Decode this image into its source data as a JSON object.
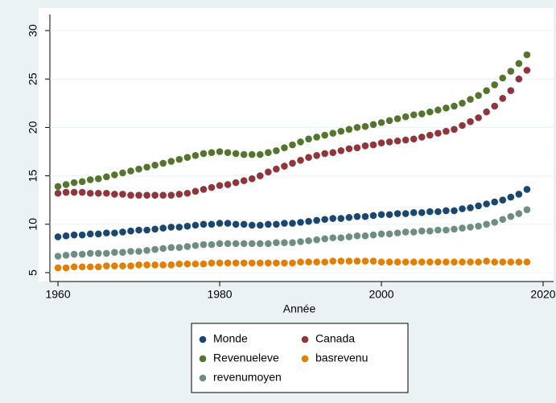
{
  "chart_data": {
    "type": "scatter",
    "x_label": "Année",
    "x": [
      1960,
      1961,
      1962,
      1963,
      1964,
      1965,
      1966,
      1967,
      1968,
      1969,
      1970,
      1971,
      1972,
      1973,
      1974,
      1975,
      1976,
      1977,
      1978,
      1979,
      1980,
      1981,
      1982,
      1983,
      1984,
      1985,
      1986,
      1987,
      1988,
      1989,
      1990,
      1991,
      1992,
      1993,
      1994,
      1995,
      1996,
      1997,
      1998,
      1999,
      2000,
      2001,
      2002,
      2003,
      2004,
      2005,
      2006,
      2007,
      2008,
      2009,
      2010,
      2011,
      2012,
      2013,
      2014,
      2015,
      2016,
      2017,
      2018
    ],
    "xlim": [
      1959,
      2020
    ],
    "xticks": [
      1960,
      1980,
      2000,
      2020
    ],
    "ylim": [
      4.3,
      30.5
    ],
    "yticks": [
      5,
      10,
      15,
      20,
      25,
      30
    ],
    "grid": true,
    "legend_position": "bottom",
    "series": [
      {
        "name": "Monde",
        "color": "#1a476f",
        "values": [
          8.7,
          8.8,
          8.9,
          8.9,
          9.0,
          9.0,
          9.1,
          9.1,
          9.2,
          9.3,
          9.4,
          9.4,
          9.5,
          9.6,
          9.7,
          9.7,
          9.8,
          9.9,
          10.0,
          10.0,
          10.1,
          10.1,
          10.0,
          10.0,
          9.9,
          9.9,
          10.0,
          10.0,
          10.1,
          10.1,
          10.2,
          10.3,
          10.4,
          10.5,
          10.6,
          10.6,
          10.7,
          10.8,
          10.8,
          10.9,
          11.0,
          11.0,
          11.1,
          11.1,
          11.2,
          11.2,
          11.3,
          11.3,
          11.4,
          11.4,
          11.6,
          11.7,
          11.9,
          12.1,
          12.3,
          12.5,
          12.8,
          13.1,
          13.6
        ]
      },
      {
        "name": "Canada",
        "color": "#90353b",
        "values": [
          13.2,
          13.3,
          13.3,
          13.3,
          13.2,
          13.2,
          13.2,
          13.1,
          13.1,
          13.0,
          13.0,
          13.0,
          13.0,
          13.0,
          13.0,
          13.1,
          13.2,
          13.4,
          13.6,
          13.8,
          14.0,
          14.1,
          14.3,
          14.5,
          14.7,
          15.0,
          15.4,
          15.7,
          16.0,
          16.3,
          16.6,
          16.9,
          17.1,
          17.3,
          17.4,
          17.6,
          17.8,
          17.9,
          18.1,
          18.2,
          18.4,
          18.5,
          18.6,
          18.7,
          18.8,
          19.0,
          19.2,
          19.4,
          19.6,
          19.8,
          20.2,
          20.6,
          21.0,
          21.6,
          22.2,
          23.0,
          23.8,
          25.0,
          25.9
        ]
      },
      {
        "name": "Revenueleve",
        "color": "#55752f",
        "values": [
          13.9,
          14.1,
          14.3,
          14.4,
          14.6,
          14.7,
          14.9,
          15.1,
          15.3,
          15.5,
          15.7,
          15.9,
          16.1,
          16.3,
          16.5,
          16.7,
          16.9,
          17.1,
          17.3,
          17.4,
          17.5,
          17.4,
          17.3,
          17.2,
          17.2,
          17.2,
          17.4,
          17.6,
          17.9,
          18.2,
          18.5,
          18.8,
          19.0,
          19.2,
          19.4,
          19.6,
          19.8,
          20.0,
          20.1,
          20.3,
          20.5,
          20.7,
          20.9,
          21.1,
          21.3,
          21.4,
          21.6,
          21.8,
          22.0,
          22.2,
          22.5,
          22.9,
          23.3,
          23.8,
          24.4,
          25.1,
          25.8,
          26.6,
          27.5
        ]
      },
      {
        "name": "basrevenu",
        "color": "#e37e00",
        "values": [
          5.5,
          5.5,
          5.6,
          5.6,
          5.6,
          5.6,
          5.7,
          5.7,
          5.7,
          5.7,
          5.8,
          5.8,
          5.8,
          5.8,
          5.8,
          5.9,
          5.9,
          5.9,
          5.9,
          6.0,
          6.0,
          6.0,
          6.0,
          6.0,
          6.0,
          6.0,
          6.0,
          6.0,
          6.0,
          6.0,
          6.1,
          6.1,
          6.1,
          6.1,
          6.2,
          6.2,
          6.2,
          6.2,
          6.2,
          6.2,
          6.1,
          6.1,
          6.1,
          6.1,
          6.1,
          6.1,
          6.1,
          6.1,
          6.1,
          6.1,
          6.1,
          6.1,
          6.1,
          6.2,
          6.1,
          6.1,
          6.1,
          6.1,
          6.1
        ]
      },
      {
        "name": "revenumoyen",
        "color": "#6e8e84",
        "values": [
          6.7,
          6.8,
          6.9,
          6.9,
          7.0,
          7.0,
          7.0,
          7.1,
          7.1,
          7.2,
          7.2,
          7.3,
          7.4,
          7.5,
          7.6,
          7.6,
          7.7,
          7.8,
          7.9,
          7.9,
          8.0,
          8.0,
          8.0,
          8.0,
          8.0,
          8.0,
          8.0,
          8.1,
          8.1,
          8.1,
          8.2,
          8.3,
          8.4,
          8.5,
          8.6,
          8.6,
          8.7,
          8.8,
          8.8,
          8.9,
          9.0,
          9.0,
          9.1,
          9.2,
          9.2,
          9.3,
          9.3,
          9.4,
          9.4,
          9.5,
          9.6,
          9.7,
          9.8,
          10.0,
          10.2,
          10.5,
          10.8,
          11.1,
          11.5
        ]
      }
    ]
  }
}
